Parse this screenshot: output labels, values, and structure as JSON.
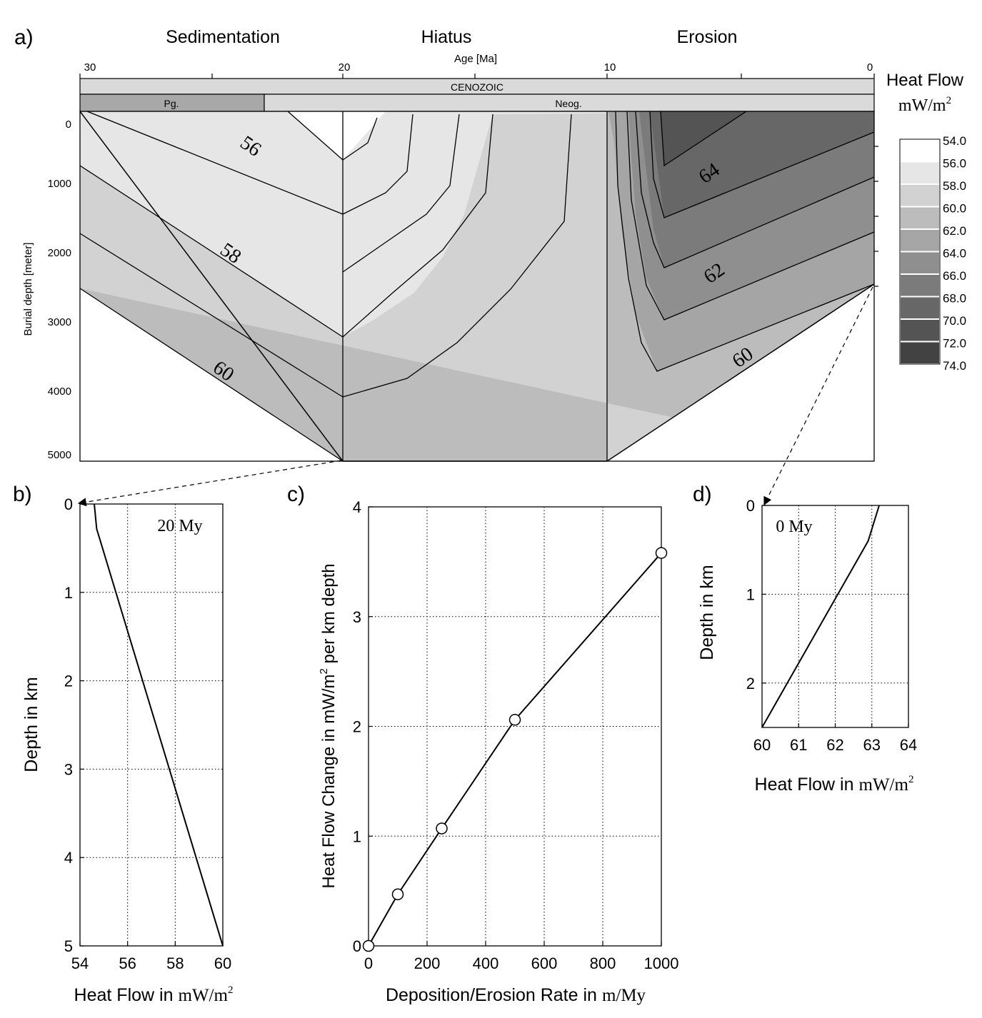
{
  "panel_labels": {
    "a": "a)",
    "b": "b)",
    "c": "c)",
    "d": "d)"
  },
  "colors": {
    "axis": "#000000",
    "grid": "#000000",
    "band_54": "#ffffff",
    "band_56": "#e6e6e6",
    "band_58": "#d2d2d2",
    "band_60": "#bcbcbc",
    "band_62": "#a5a5a5",
    "band_64": "#8f8f8f",
    "band_66": "#7b7b7b",
    "band_68": "#676767",
    "band_70": "#545454",
    "band_72": "#424242"
  },
  "chart_data": [
    {
      "type": "heatmap",
      "phase_labels": [
        "Sedimentation",
        "Hiatus",
        "Erosion"
      ],
      "x_title": "Age [Ma]",
      "y_title": "Burial depth [meter]",
      "xlim": [
        30,
        0
      ],
      "ylim": [
        0,
        5000
      ],
      "x_ticks": [
        "30",
        "20",
        "10",
        "0"
      ],
      "y_ticks": [
        "0",
        "1000",
        "2000",
        "3000",
        "4000",
        "5000"
      ],
      "stratigraphy": {
        "era": "CENOZOIC",
        "periods": [
          "Pg.",
          "Neog."
        ]
      },
      "legend_title": "Heat Flow",
      "legend_unit": "mW/m",
      "legend_unit_sup": "2",
      "legend_values": [
        "54.0",
        "56.0",
        "58.0",
        "60.0",
        "62.0",
        "64.0",
        "66.0",
        "68.0",
        "70.0",
        "72.0",
        "74.0"
      ],
      "contour_labels": [
        "56",
        "58",
        "60",
        "64",
        "62",
        "60"
      ],
      "burial_path": {
        "age": [
          30,
          20,
          10,
          0
        ],
        "depth": [
          0,
          5000,
          5000,
          2500
        ]
      }
    },
    {
      "type": "line",
      "annotation": "20 My",
      "xlabel": "Heat Flow in",
      "xlabel_unit": "mW/m",
      "xlabel_sup": "2",
      "ylabel": "Depth in km",
      "xlim": [
        54,
        60
      ],
      "ylim": [
        0,
        5
      ],
      "x_ticks": [
        "54",
        "56",
        "58",
        "60"
      ],
      "y_ticks": [
        "0",
        "1",
        "2",
        "3",
        "4",
        "5"
      ],
      "series": [
        {
          "x": [
            54.6,
            54.7,
            60.0
          ],
          "y": [
            0.0,
            0.28,
            5.0
          ]
        }
      ]
    },
    {
      "type": "line",
      "xlabel": "Deposition/Erosion  Rate in",
      "xlabel_unit": "m/My",
      "ylabel": "Heat Flow Change in mW/m",
      "ylabel_sup": "2",
      "ylabel_tail": " per km depth",
      "xlim": [
        0,
        1000
      ],
      "ylim": [
        0,
        4
      ],
      "x_ticks": [
        "0",
        "200",
        "400",
        "600",
        "800",
        "1000"
      ],
      "y_ticks": [
        "0",
        "1",
        "2",
        "3",
        "4"
      ],
      "series": [
        {
          "x": [
            0,
            100,
            250,
            500,
            1000
          ],
          "y": [
            0,
            0.47,
            1.07,
            2.06,
            3.58
          ]
        }
      ]
    },
    {
      "type": "line",
      "annotation": "0 My",
      "xlabel": "Heat Flow in",
      "xlabel_unit": "mW/m",
      "xlabel_sup": "2",
      "ylabel": "Depth in km",
      "xlim": [
        60,
        64
      ],
      "ylim": [
        0,
        2.5
      ],
      "x_ticks": [
        "60",
        "61",
        "62",
        "63",
        "64"
      ],
      "y_ticks": [
        "0",
        "1",
        "2"
      ],
      "series": [
        {
          "x": [
            63.2,
            62.9,
            60.0
          ],
          "y": [
            0.0,
            0.4,
            2.5
          ]
        }
      ]
    }
  ]
}
